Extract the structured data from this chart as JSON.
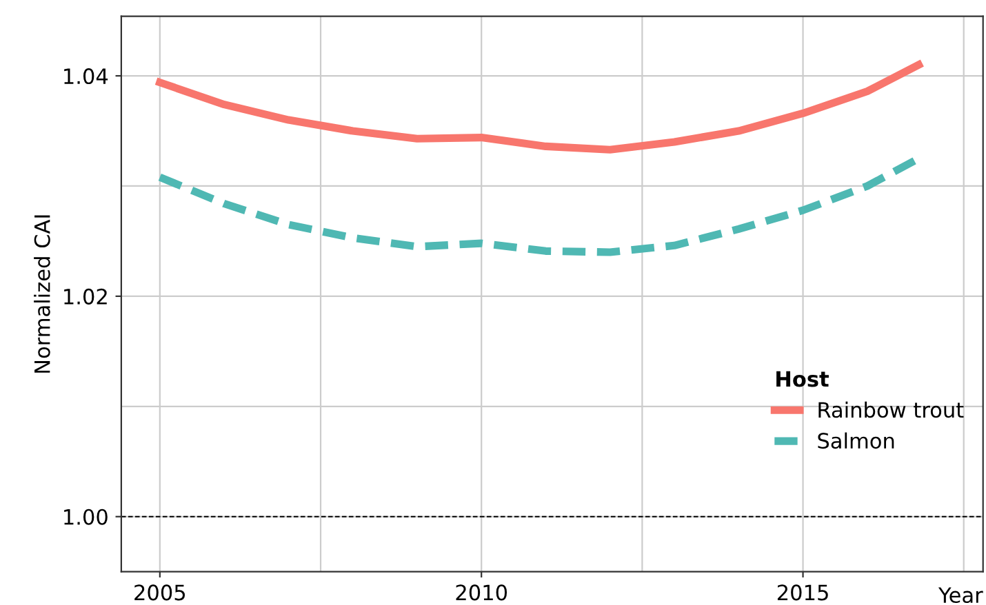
{
  "chart_data": {
    "type": "line",
    "xlabel": "Year",
    "ylabel": "Normalized CAI",
    "legend_title": "Host",
    "legend": "bottom right",
    "grid": true,
    "xlim": [
      2004.4,
      2017.8
    ],
    "ylim": [
      0.995,
      1.0454
    ],
    "xticks": [
      2005,
      {
        "value": 2007.5,
        "label": null
      },
      2010,
      {
        "value": 2012.5,
        "label": null
      },
      2015,
      {
        "value": 2017.5,
        "label": null
      }
    ],
    "yticks": [
      {
        "value": 1.0,
        "label": "1.00"
      },
      {
        "value": 1.01,
        "label": null
      },
      {
        "value": 1.02,
        "label": "1.02"
      },
      {
        "value": 1.03,
        "label": null
      },
      {
        "value": 1.04,
        "label": "1.04"
      }
    ],
    "x": [
      2005,
      2006,
      2007,
      2008,
      2009,
      2010,
      2011,
      2012,
      2013,
      2014,
      2015,
      2016,
      2016.8
    ],
    "series": [
      {
        "name": "Rainbow trout",
        "color": "#f8766d",
        "line_style": "solid",
        "values": [
          1.0394,
          1.0374,
          1.036,
          1.035,
          1.0343,
          1.0344,
          1.0336,
          1.0333,
          1.034,
          1.035,
          1.0366,
          1.0386,
          1.041
        ]
      },
      {
        "name": "Salmon",
        "color": "#4fb8b3",
        "line_style": "dashed",
        "values": [
          1.0308,
          1.0284,
          1.0265,
          1.0253,
          1.0245,
          1.0248,
          1.0241,
          1.024,
          1.0246,
          1.0261,
          1.0278,
          1.03,
          1.0325
        ]
      }
    ],
    "ref_lines": [
      {
        "axis": "y",
        "value": 1.0,
        "color": "#000000",
        "line_style": "dashed"
      }
    ]
  }
}
